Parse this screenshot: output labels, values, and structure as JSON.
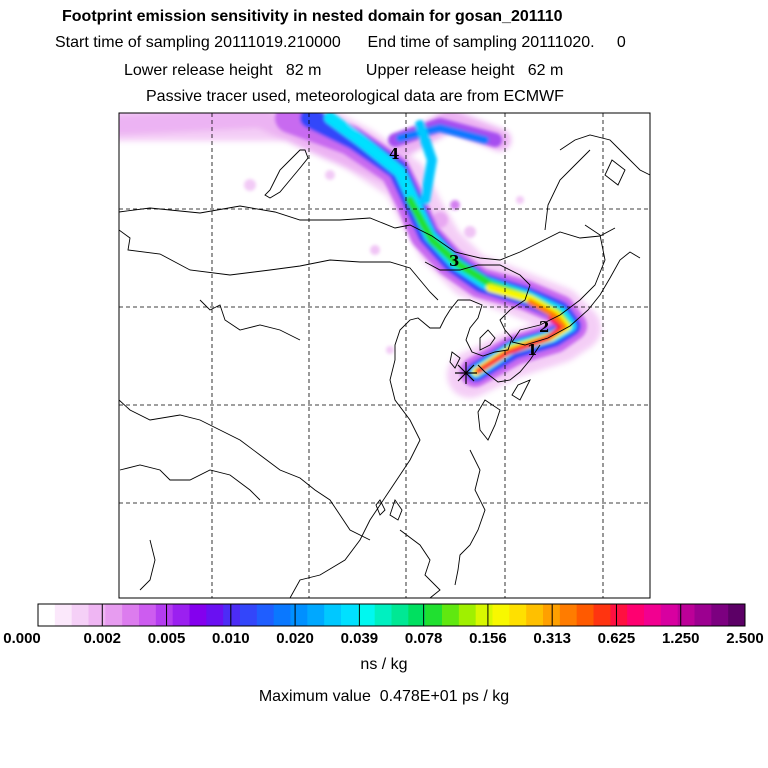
{
  "header": {
    "title": "Footprint emission sensitivity in nested domain for gosan_201110",
    "sampling": "Start time of sampling 20111019.210000      End time of sampling 20111020.     0",
    "release": "Lower release height   82 m          Upper release height   62 m",
    "tracer": "Passive tracer used, meteorological data are from ECMWF"
  },
  "map": {
    "trajectory_labels": [
      "1",
      "2",
      "3",
      "4"
    ],
    "receptor_marker": "star-icon"
  },
  "colorbar": {
    "labels": [
      "0.000",
      "0.002",
      "0.005",
      "0.010",
      "0.020",
      "0.039",
      "0.078",
      "0.156",
      "0.313",
      "0.625",
      "1.250",
      "2.500"
    ],
    "colors": [
      "#ffffff",
      "#fbe8fb",
      "#f5d0f7",
      "#efb6f3",
      "#e79cf0",
      "#dc7cee",
      "#cd5cf0",
      "#b43cf0",
      "#9b20f0",
      "#8400ee",
      "#6a10f2",
      "#4c2cf6",
      "#3346fa",
      "#1f5eff",
      "#0a78ff",
      "#0090ff",
      "#00a8ff",
      "#00c8ff",
      "#00e0ff",
      "#00f8f0",
      "#00f0c0",
      "#00e894",
      "#00e060",
      "#20e030",
      "#60e810",
      "#a0f000",
      "#d8f800",
      "#f8f800",
      "#ffe000",
      "#ffc000",
      "#ffa000",
      "#ff7c00",
      "#ff5a00",
      "#ff3410",
      "#ff1040",
      "#ff0070",
      "#f20090",
      "#d800a0",
      "#bc0098",
      "#9c0090",
      "#7c0080",
      "#5c0066"
    ],
    "unit": "ns / kg"
  },
  "footer": {
    "max_value": "Maximum value  0.478E+01 ps / kg"
  }
}
